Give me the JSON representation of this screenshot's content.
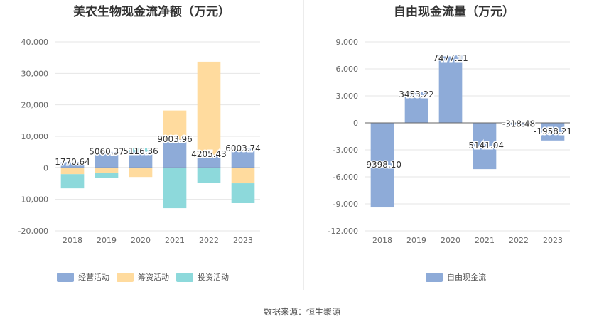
{
  "source_text": "数据来源：恒生聚源",
  "chart_data": [
    {
      "type": "bar",
      "stacked": true,
      "title": "美农生物现金流净额（万元）",
      "categories": [
        "2018",
        "2019",
        "2020",
        "2021",
        "2022",
        "2023"
      ],
      "ylim": [
        -20000,
        40000
      ],
      "yticks": [
        40000,
        30000,
        20000,
        10000,
        0,
        -10000,
        -20000
      ],
      "ytick_labels": [
        "40,000",
        "30,000",
        "20,000",
        "10,000",
        "0",
        "-10,000",
        "-20,000"
      ],
      "grid": true,
      "legend_position": "bottom",
      "series": [
        {
          "name": "经营活动",
          "color": "#8eabd8",
          "values": [
            1770.64,
            5060.37,
            5116.36,
            9003.96,
            4205.43,
            6003.74
          ]
        },
        {
          "name": "筹资活动",
          "color": "#ffdb9e",
          "values": [
            -2000,
            -1500,
            -2900,
            9200,
            29500,
            -4900
          ]
        },
        {
          "name": "投资活动",
          "color": "#8dd9db",
          "values": [
            -4500,
            -1800,
            1200,
            -12800,
            -4800,
            -6300
          ]
        }
      ],
      "data_labels": [
        "1770.64",
        "5060.37",
        "5116.36",
        "9003.96",
        "4205.43",
        "6003.74"
      ]
    },
    {
      "type": "bar",
      "title": "自由现金流量（万元）",
      "categories": [
        "2018",
        "2019",
        "2020",
        "2021",
        "2022",
        "2023"
      ],
      "ylim": [
        -12000,
        9000
      ],
      "yticks": [
        9000,
        6000,
        3000,
        0,
        -3000,
        -6000,
        -9000,
        -12000
      ],
      "ytick_labels": [
        "9,000",
        "6,000",
        "3,000",
        "0",
        "-3,000",
        "-6,000",
        "-9,000",
        "-12,000"
      ],
      "grid": true,
      "legend_position": "bottom",
      "series": [
        {
          "name": "自由现金流",
          "color": "#8eabd8",
          "values": [
            -9398.1,
            3453.22,
            7477.11,
            -5141.04,
            -318.48,
            -1958.21
          ]
        }
      ],
      "data_labels": [
        "-9398.10",
        "3453.22",
        "7477.11",
        "-5141.04",
        "-318.48",
        "-1958.21"
      ]
    }
  ]
}
